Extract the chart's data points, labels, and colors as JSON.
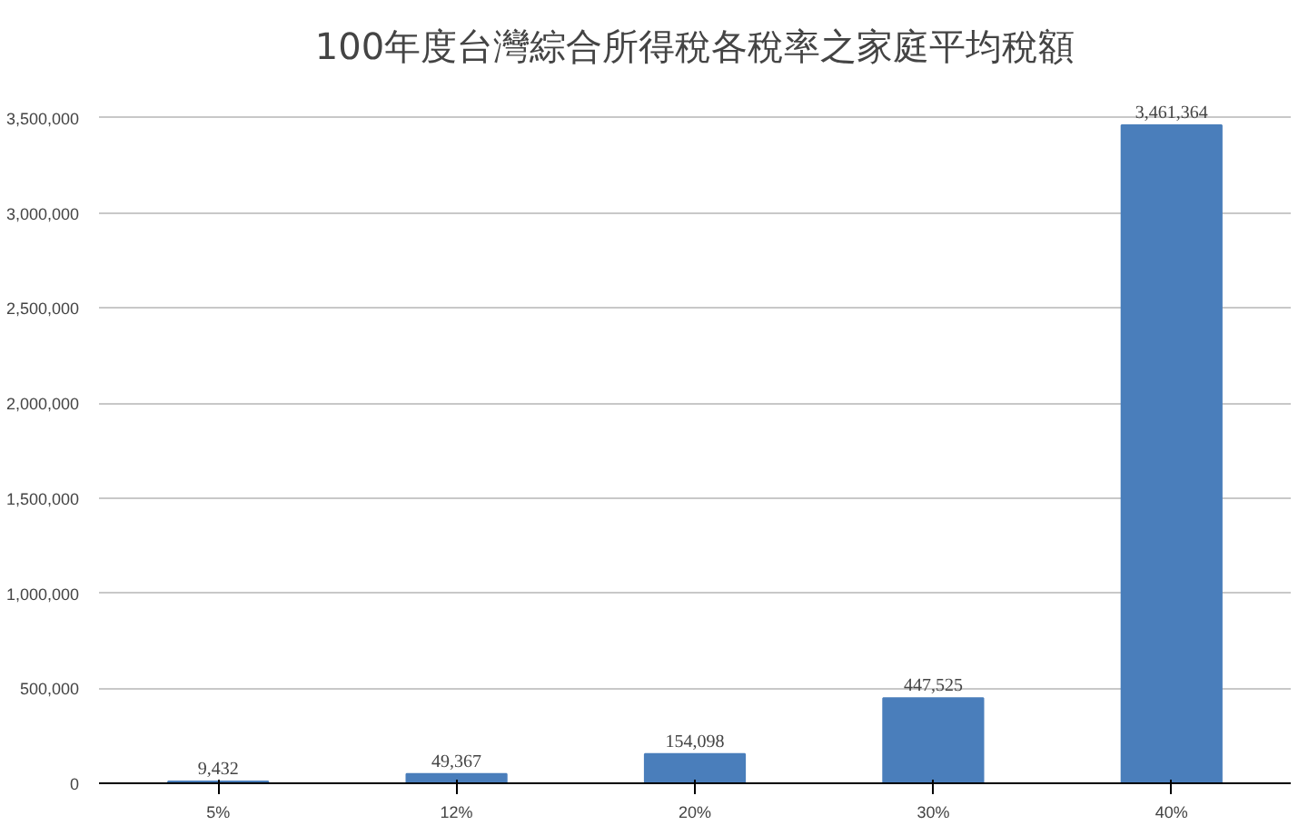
{
  "chart_data": {
    "type": "bar",
    "title": "100年度台灣綜合所得稅各稅率之家庭平均稅額",
    "categories": [
      "5%",
      "12%",
      "20%",
      "30%",
      "40%"
    ],
    "values": [
      9432,
      49367,
      154098,
      447525,
      3461364
    ],
    "value_labels": [
      "9,432",
      "49,367",
      "154,098",
      "447,525",
      "3,461,364"
    ],
    "color": "#4a7ebb",
    "ylim": [
      0,
      3500000
    ],
    "yticks": [
      0,
      {
        "value": 500000,
        "label": "500,000"
      },
      {
        "value": 1000000,
        "label": "1,000,000"
      },
      {
        "value": 1500000,
        "label": "1,500,000"
      },
      {
        "value": 2000000,
        "label": "2,000,000"
      },
      {
        "value": 2500000,
        "label": "2,500,000"
      },
      {
        "value": 3000000,
        "label": "3,000,000"
      },
      {
        "value": 3500000,
        "label": "3,500,000"
      }
    ],
    "grid": "y"
  }
}
